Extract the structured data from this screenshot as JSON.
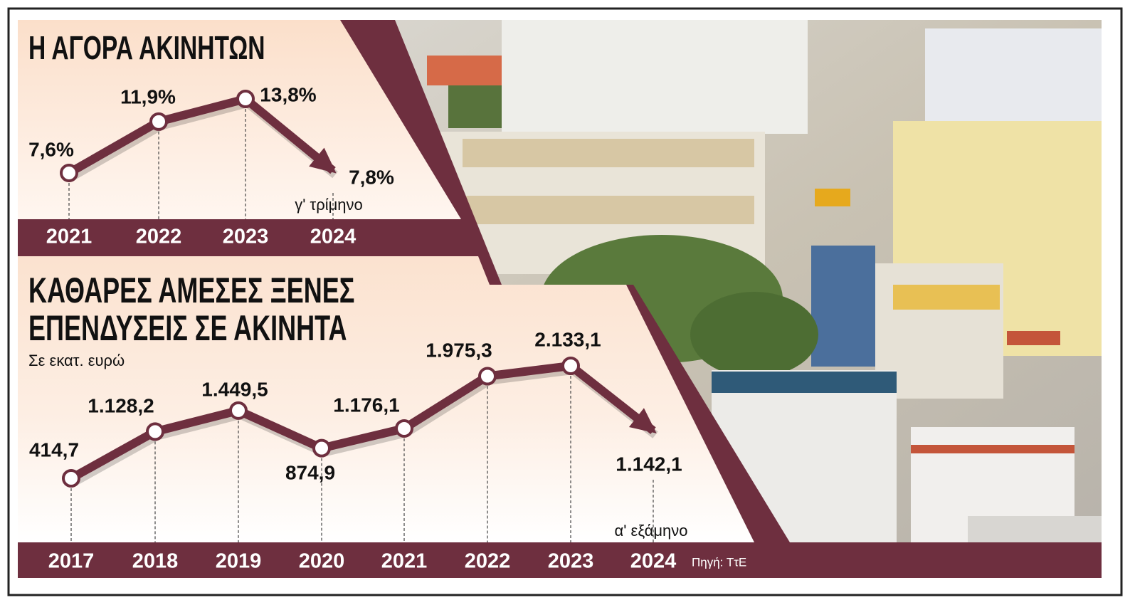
{
  "chart_data": [
    {
      "type": "line",
      "title": "Η ΑΓΟΡΑ ΑΚΙΝΗΤΩΝ",
      "categories": [
        "2021",
        "2022",
        "2023",
        "2024"
      ],
      "values": [
        7.6,
        11.9,
        13.8,
        7.8
      ],
      "value_labels": [
        "7,6%",
        "11,9%",
        "13,8%",
        "7,8%"
      ],
      "annotation": "γ' τρίμηνο",
      "color": "#6e2f3f"
    },
    {
      "type": "line",
      "title": "ΚΑΘΑΡΕΣ ΑΜΕΣΕΣ ΞΕΝΕΣ ΕΠΕΝΔΥΣΕΙΣ ΣΕ ΑΚΙΝΗΤΑ",
      "subtitle": "Σε εκατ. ευρώ",
      "categories": [
        "2017",
        "2018",
        "2019",
        "2020",
        "2021",
        "2022",
        "2023",
        "2024"
      ],
      "values": [
        414.7,
        1128.2,
        1449.5,
        874.9,
        1176.1,
        1975.3,
        2133.1,
        1142.1
      ],
      "value_labels": [
        "414,7",
        "1.128,2",
        "1.449,5",
        "874,9",
        "1.176,1",
        "1.975,3",
        "2.133,1",
        "1.142,1"
      ],
      "annotation": "α' εξάμηνο",
      "color": "#6e2f3f"
    }
  ],
  "source": "Πηγή: ΤτΕ"
}
